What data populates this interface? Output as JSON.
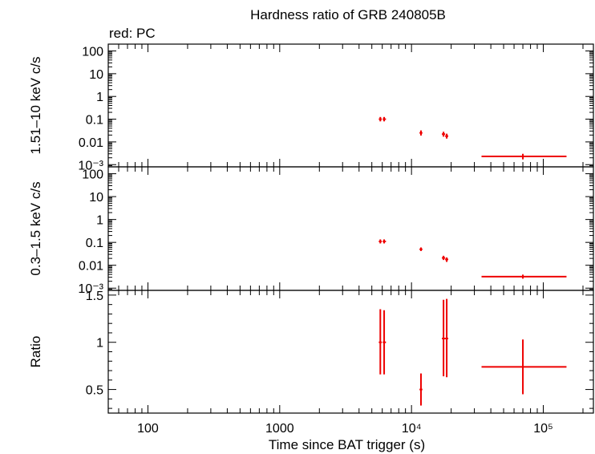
{
  "title": "Hardness ratio of GRB 240805B",
  "subtitle": "red: PC",
  "colors": {
    "data": "#ee0000",
    "axes": "#000000",
    "background": "#ffffff"
  },
  "chart_data": [
    {
      "type": "scatter",
      "ylabel": "1.51–10 keV c/s",
      "xscale": "log",
      "yscale": "log",
      "xlim": [
        50,
        240000
      ],
      "ylim": [
        0.0008,
        200
      ],
      "ytick_labels": [
        "100",
        "10",
        "1",
        "0.1",
        "0.01",
        "10⁻³"
      ],
      "ytick_values": [
        100,
        10,
        1,
        0.1,
        0.01,
        0.001
      ],
      "series": [
        {
          "points": [
            {
              "x": 5800,
              "y": 0.1,
              "xerr": [
                5650,
                5950
              ],
              "yerr": [
                0.08,
                0.125
              ]
            },
            {
              "x": 6200,
              "y": 0.1,
              "xerr": [
                6050,
                6400
              ],
              "yerr": [
                0.08,
                0.125
              ]
            },
            {
              "x": 11800,
              "y": 0.025,
              "xerr": [
                11500,
                12100
              ],
              "yerr": [
                0.019,
                0.032
              ]
            },
            {
              "x": 17500,
              "y": 0.022,
              "xerr": [
                17000,
                18000
              ],
              "yerr": [
                0.017,
                0.028
              ]
            },
            {
              "x": 18500,
              "y": 0.018,
              "xerr": [
                18000,
                19000
              ],
              "yerr": [
                0.014,
                0.023
              ]
            },
            {
              "x": 70000,
              "y": 0.0023,
              "xerr": [
                34000,
                150000
              ],
              "yerr": [
                0.0017,
                0.003
              ]
            }
          ]
        }
      ]
    },
    {
      "type": "scatter",
      "ylabel": "0.3–1.5 keV c/s",
      "xscale": "log",
      "yscale": "log",
      "xlim": [
        50,
        240000
      ],
      "ylim": [
        0.0008,
        200
      ],
      "ytick_labels": [
        "100",
        "10",
        "1",
        "0.1",
        "0.01",
        "10⁻³"
      ],
      "ytick_values": [
        100,
        10,
        1,
        0.1,
        0.01,
        0.001
      ],
      "series": [
        {
          "points": [
            {
              "x": 5800,
              "y": 0.11,
              "xerr": [
                5650,
                5950
              ],
              "yerr": [
                0.09,
                0.135
              ]
            },
            {
              "x": 6200,
              "y": 0.11,
              "xerr": [
                6050,
                6400
              ],
              "yerr": [
                0.09,
                0.135
              ]
            },
            {
              "x": 11800,
              "y": 0.05,
              "xerr": [
                11500,
                12100
              ],
              "yerr": [
                0.042,
                0.06
              ]
            },
            {
              "x": 17500,
              "y": 0.021,
              "xerr": [
                17000,
                18000
              ],
              "yerr": [
                0.017,
                0.026
              ]
            },
            {
              "x": 18500,
              "y": 0.018,
              "xerr": [
                18000,
                19000
              ],
              "yerr": [
                0.014,
                0.022
              ]
            },
            {
              "x": 70000,
              "y": 0.0032,
              "xerr": [
                34000,
                150000
              ],
              "yerr": [
                0.0026,
                0.0039
              ]
            }
          ]
        }
      ]
    },
    {
      "type": "scatter",
      "ylabel": "Ratio",
      "xlabel": "Time since BAT trigger (s)",
      "xscale": "log",
      "yscale": "linear",
      "xlim": [
        50,
        240000
      ],
      "ylim": [
        0.25,
        1.55
      ],
      "ytick_labels": [
        "1.5",
        "1",
        "0.5"
      ],
      "ytick_values": [
        1.5,
        1.0,
        0.5
      ],
      "xtick_labels": [
        "100",
        "1000",
        "10⁴",
        "10⁵"
      ],
      "xtick_values": [
        100,
        1000,
        10000,
        100000
      ],
      "series": [
        {
          "points": [
            {
              "x": 5800,
              "y": 1.0,
              "xerr": [
                5650,
                5950
              ],
              "yerr": [
                0.66,
                1.35
              ]
            },
            {
              "x": 6200,
              "y": 1.0,
              "xerr": [
                6050,
                6400
              ],
              "yerr": [
                0.66,
                1.34
              ]
            },
            {
              "x": 11800,
              "y": 0.5,
              "xerr": [
                11500,
                12100
              ],
              "yerr": [
                0.33,
                0.67
              ]
            },
            {
              "x": 17500,
              "y": 1.04,
              "xerr": [
                17000,
                18000
              ],
              "yerr": [
                0.64,
                1.45
              ]
            },
            {
              "x": 18500,
              "y": 1.04,
              "xerr": [
                18000,
                19000
              ],
              "yerr": [
                0.63,
                1.46
              ]
            },
            {
              "x": 70000,
              "y": 0.74,
              "xerr": [
                34000,
                150000
              ],
              "yerr": [
                0.45,
                1.03
              ]
            }
          ]
        }
      ]
    }
  ]
}
